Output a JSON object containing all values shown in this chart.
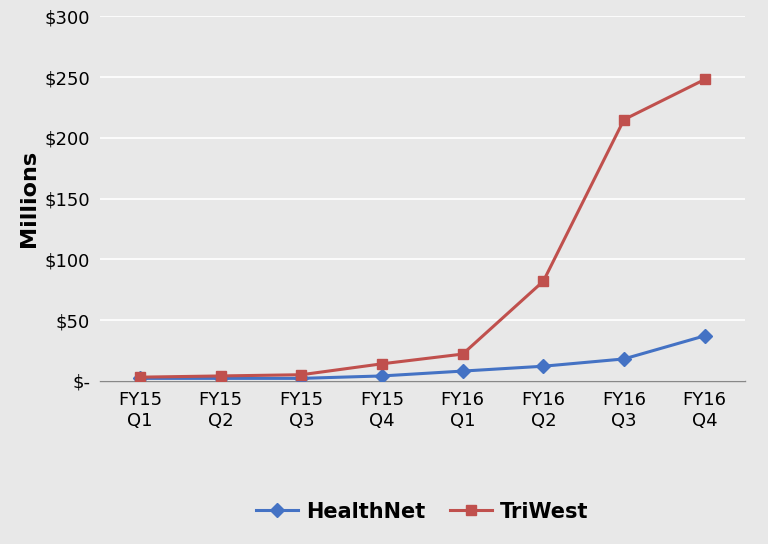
{
  "categories": [
    "FY15\nQ1",
    "FY15\nQ2",
    "FY15\nQ3",
    "FY15\nQ4",
    "FY16\nQ1",
    "FY16\nQ2",
    "FY16\nQ3",
    "FY16\nQ4"
  ],
  "healthnet": [
    2,
    2,
    2,
    4,
    8,
    12,
    18,
    37
  ],
  "triwest": [
    3,
    4,
    5,
    14,
    22,
    82,
    215,
    248
  ],
  "healthnet_color": "#4472C4",
  "triwest_color": "#C0504D",
  "healthnet_label": "HealthNet",
  "triwest_label": "TriWest",
  "ylabel": "Millions",
  "ylim": [
    0,
    300
  ],
  "yticks": [
    0,
    50,
    100,
    150,
    200,
    250,
    300
  ],
  "ytick_labels": [
    "$-",
    "$50",
    "$100",
    "$150",
    "$200",
    "$250",
    "$300"
  ],
  "outer_bg": "#E8E8E8",
  "plot_bg": "#E8E8E8",
  "grid_color": "#FFFFFF",
  "ylabel_fontsize": 16,
  "tick_fontsize": 13,
  "legend_fontsize": 15
}
